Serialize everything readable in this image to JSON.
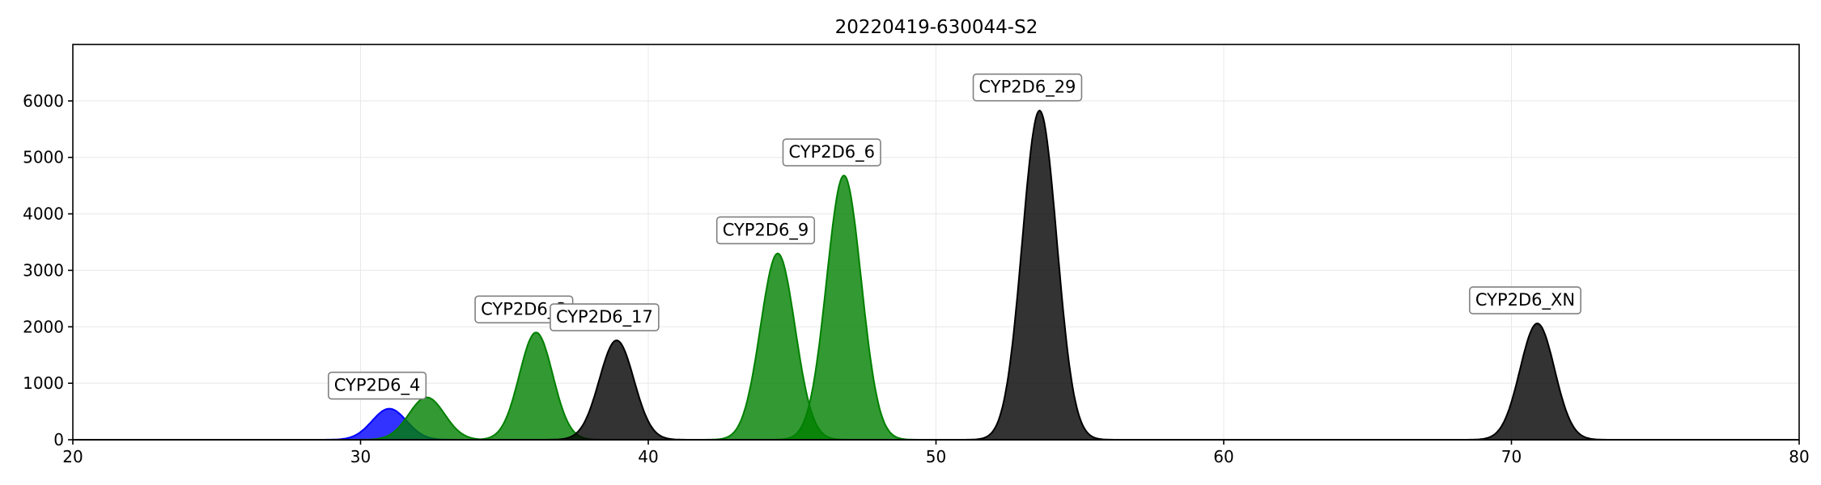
{
  "chart_data": {
    "type": "area",
    "title": "20220419-630044-S2",
    "xlabel": "",
    "ylabel": "",
    "xlim": [
      20,
      80
    ],
    "ylim": [
      0,
      7000
    ],
    "xticks": [
      20,
      30,
      40,
      50,
      60,
      70,
      80
    ],
    "yticks": [
      0,
      1000,
      2000,
      3000,
      4000,
      5000,
      6000
    ],
    "grid": true,
    "peaks": [
      {
        "label": "CYP2D6_4",
        "center": 31.0,
        "height": 550,
        "sigma": 0.6,
        "color": "#0000ff",
        "labeled": true
      },
      {
        "label": "",
        "center": 32.3,
        "height": 750,
        "sigma": 0.62,
        "color": "#008000",
        "labeled": false
      },
      {
        "label": "CYP2D6_3",
        "center": 36.1,
        "height": 1900,
        "sigma": 0.58,
        "color": "#008000",
        "labeled": true
      },
      {
        "label": "CYP2D6_17",
        "center": 38.9,
        "height": 1760,
        "sigma": 0.6,
        "color": "#000000",
        "labeled": true
      },
      {
        "label": "CYP2D6_9",
        "center": 44.5,
        "height": 3300,
        "sigma": 0.6,
        "color": "#008000",
        "labeled": true
      },
      {
        "label": "CYP2D6_6",
        "center": 46.8,
        "height": 4680,
        "sigma": 0.6,
        "color": "#008000",
        "labeled": true
      },
      {
        "label": "CYP2D6_29",
        "center": 53.6,
        "height": 5830,
        "sigma": 0.6,
        "color": "#000000",
        "labeled": true
      },
      {
        "label": "CYP2D6_XN",
        "center": 70.9,
        "height": 2060,
        "sigma": 0.6,
        "color": "#000000",
        "labeled": true
      }
    ]
  }
}
